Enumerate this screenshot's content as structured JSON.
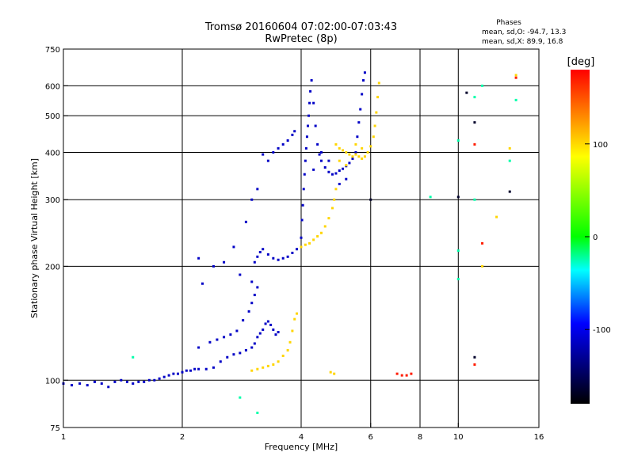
{
  "chart_data": {
    "type": "scatter",
    "title": "Tromsø 20160604 07:02:00-07:03:43",
    "subtitle": "RwPretec (8p)",
    "xlabel": "Frequency [MHz]",
    "ylabel": "Stationary phase Virtual Height [km]",
    "x_scale": "log",
    "y_scale": "log",
    "xlim": [
      1,
      16
    ],
    "ylim": [
      75,
      750
    ],
    "x_ticks": [
      1,
      2,
      4,
      6,
      8,
      10,
      16
    ],
    "y_ticks": [
      75,
      100,
      200,
      300,
      400,
      500,
      600,
      750
    ],
    "x_grid": [
      2,
      4,
      6,
      8,
      10
    ],
    "y_grid": [
      100,
      200,
      300,
      400,
      500,
      600
    ],
    "phases_header": "Phases",
    "phases_o": "mean, sd,O: -94.7, 13.3",
    "phases_x": "mean, sd,X:  89.9, 16.8",
    "colorbar": {
      "label": "[deg]",
      "ticks": [
        100,
        0,
        -100
      ],
      "range": [
        -180,
        180
      ],
      "colors": [
        "#ff0000",
        "#ffff00",
        "#00ff00",
        "#00ffff",
        "#0000ff",
        "#000000"
      ]
    },
    "series": [
      {
        "color_deg": -110,
        "points": [
          [
            1.0,
            98
          ],
          [
            1.05,
            97
          ],
          [
            1.1,
            98
          ],
          [
            1.15,
            97
          ],
          [
            1.2,
            99
          ],
          [
            1.25,
            98
          ],
          [
            1.3,
            96
          ],
          [
            1.35,
            99
          ],
          [
            1.4,
            100
          ],
          [
            1.45,
            99
          ],
          [
            1.5,
            98
          ],
          [
            1.55,
            99
          ],
          [
            1.6,
            99
          ],
          [
            1.65,
            100
          ],
          [
            1.7,
            100
          ],
          [
            1.75,
            101
          ],
          [
            1.8,
            102
          ],
          [
            1.85,
            103
          ],
          [
            1.9,
            104
          ],
          [
            1.95,
            104
          ],
          [
            2.0,
            105
          ],
          [
            2.05,
            106
          ],
          [
            2.1,
            106
          ],
          [
            2.15,
            107
          ],
          [
            2.2,
            107
          ],
          [
            2.3,
            107
          ],
          [
            2.4,
            108
          ],
          [
            2.5,
            112
          ],
          [
            2.6,
            115
          ],
          [
            2.7,
            117
          ],
          [
            2.8,
            118
          ],
          [
            2.9,
            120
          ],
          [
            3.0,
            122
          ],
          [
            3.05,
            125
          ],
          [
            3.1,
            130
          ],
          [
            3.15,
            133
          ],
          [
            3.2,
            136
          ],
          [
            3.25,
            141
          ],
          [
            3.3,
            143
          ],
          [
            3.35,
            140
          ],
          [
            3.4,
            136
          ],
          [
            3.45,
            132
          ],
          [
            3.5,
            134
          ],
          [
            2.2,
            122
          ],
          [
            2.35,
            126
          ],
          [
            2.45,
            128
          ],
          [
            2.55,
            130
          ],
          [
            2.65,
            132
          ],
          [
            2.75,
            135
          ],
          [
            2.85,
            144
          ],
          [
            2.95,
            152
          ],
          [
            3.0,
            160
          ],
          [
            3.05,
            168
          ],
          [
            3.1,
            176
          ],
          [
            2.4,
            200
          ],
          [
            2.55,
            205
          ],
          [
            2.7,
            225
          ],
          [
            2.9,
            262
          ],
          [
            3.0,
            300
          ],
          [
            3.1,
            320
          ],
          [
            2.2,
            210
          ],
          [
            2.8,
            190
          ],
          [
            2.25,
            180
          ],
          [
            3.0,
            182
          ],
          [
            3.05,
            205
          ],
          [
            3.1,
            212
          ],
          [
            3.15,
            218
          ],
          [
            3.2,
            222
          ],
          [
            3.3,
            215
          ],
          [
            3.4,
            210
          ],
          [
            3.5,
            208
          ],
          [
            3.6,
            210
          ],
          [
            3.7,
            212
          ],
          [
            3.8,
            217
          ],
          [
            3.9,
            222
          ],
          [
            4.0,
            238
          ],
          [
            4.02,
            265
          ],
          [
            4.04,
            290
          ],
          [
            4.06,
            320
          ],
          [
            4.08,
            350
          ],
          [
            4.1,
            380
          ],
          [
            4.12,
            410
          ],
          [
            4.14,
            440
          ],
          [
            4.16,
            470
          ],
          [
            4.18,
            500
          ],
          [
            4.2,
            540
          ],
          [
            4.22,
            580
          ],
          [
            4.25,
            620
          ],
          [
            4.3,
            540
          ],
          [
            4.35,
            470
          ],
          [
            4.4,
            420
          ],
          [
            4.45,
            395
          ],
          [
            4.5,
            380
          ],
          [
            4.6,
            365
          ],
          [
            4.7,
            355
          ],
          [
            4.8,
            350
          ],
          [
            4.9,
            352
          ],
          [
            5.0,
            358
          ],
          [
            5.1,
            362
          ],
          [
            5.2,
            368
          ],
          [
            5.3,
            375
          ],
          [
            5.4,
            385
          ],
          [
            5.5,
            400
          ],
          [
            5.55,
            440
          ],
          [
            5.6,
            480
          ],
          [
            5.65,
            520
          ],
          [
            5.7,
            570
          ],
          [
            5.75,
            620
          ],
          [
            5.8,
            650
          ],
          [
            3.4,
            400
          ],
          [
            3.5,
            410
          ],
          [
            3.6,
            420
          ],
          [
            3.7,
            430
          ],
          [
            3.8,
            445
          ],
          [
            3.85,
            455
          ],
          [
            3.2,
            395
          ],
          [
            3.3,
            380
          ],
          [
            4.3,
            360
          ],
          [
            4.5,
            400
          ],
          [
            4.7,
            380
          ],
          [
            5.0,
            330
          ],
          [
            5.2,
            340
          ]
        ]
      },
      {
        "color_deg": 105,
        "points": [
          [
            3.0,
            106
          ],
          [
            3.1,
            107
          ],
          [
            3.2,
            108
          ],
          [
            3.3,
            109
          ],
          [
            3.4,
            110
          ],
          [
            3.5,
            112
          ],
          [
            3.6,
            116
          ],
          [
            3.7,
            120
          ],
          [
            3.75,
            126
          ],
          [
            3.8,
            135
          ],
          [
            3.85,
            145
          ],
          [
            3.9,
            150
          ],
          [
            4.0,
            225
          ],
          [
            4.1,
            228
          ],
          [
            4.2,
            230
          ],
          [
            4.3,
            235
          ],
          [
            4.4,
            240
          ],
          [
            4.5,
            245
          ],
          [
            4.6,
            255
          ],
          [
            4.7,
            268
          ],
          [
            4.8,
            285
          ],
          [
            4.85,
            300
          ],
          [
            4.9,
            320
          ],
          [
            4.75,
            105
          ],
          [
            4.85,
            104
          ],
          [
            4.9,
            420
          ],
          [
            5.0,
            410
          ],
          [
            5.1,
            405
          ],
          [
            5.2,
            400
          ],
          [
            5.3,
            395
          ],
          [
            5.4,
            390
          ],
          [
            5.5,
            395
          ],
          [
            5.6,
            390
          ],
          [
            5.7,
            385
          ],
          [
            5.8,
            390
          ],
          [
            5.9,
            400
          ],
          [
            6.0,
            415
          ],
          [
            6.1,
            440
          ],
          [
            6.15,
            470
          ],
          [
            6.2,
            510
          ],
          [
            6.25,
            560
          ],
          [
            6.3,
            610
          ],
          [
            5.0,
            380
          ],
          [
            5.2,
            370
          ],
          [
            5.5,
            420
          ],
          [
            5.7,
            410
          ],
          [
            12.5,
            270
          ],
          [
            11.5,
            200
          ],
          [
            13.5,
            410
          ],
          [
            14.0,
            640
          ]
        ]
      },
      {
        "color_deg": 170,
        "points": [
          [
            7.0,
            104
          ],
          [
            7.2,
            103
          ],
          [
            7.4,
            103
          ],
          [
            7.6,
            104
          ],
          [
            11.5,
            230
          ],
          [
            11.0,
            420
          ],
          [
            14.0,
            630
          ],
          [
            11.0,
            110
          ]
        ]
      },
      {
        "color_deg": -165,
        "points": [
          [
            6.0,
            300
          ],
          [
            10.0,
            305
          ],
          [
            11.0,
            480
          ],
          [
            11.0,
            115
          ],
          [
            10.5,
            575
          ],
          [
            13.5,
            315
          ]
        ]
      },
      {
        "color_deg": -20,
        "points": [
          [
            1.5,
            115
          ],
          [
            2.8,
            90
          ],
          [
            3.1,
            82
          ],
          [
            8.5,
            305
          ],
          [
            10.0,
            430
          ],
          [
            11.0,
            560
          ],
          [
            11.0,
            300
          ],
          [
            13.5,
            380
          ],
          [
            14.0,
            550
          ],
          [
            11.5,
            600
          ],
          [
            10.0,
            185
          ],
          [
            10.0,
            220
          ]
        ]
      }
    ]
  }
}
